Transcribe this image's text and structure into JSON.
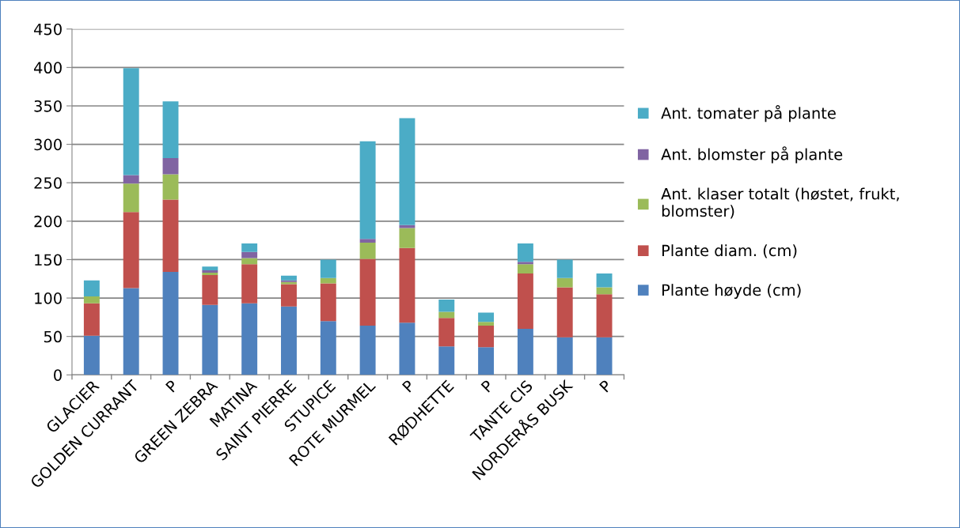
{
  "chart_data": {
    "type": "bar",
    "stacked": true,
    "categories": [
      "GLACIER",
      "GOLDEN CURRANT",
      "P",
      "GREEN ZEBRA",
      "MATINA",
      "SAINT PIERRE",
      "STUPICE",
      "ROTE MURMEL",
      "P",
      "RØDHETTE",
      "P",
      "TANTE CIS",
      "NORDERÅS BUSK",
      "P"
    ],
    "series": [
      {
        "name": "Plante høyde (cm)",
        "color": "#4f81bd",
        "values": [
          51,
          113,
          134,
          91,
          93,
          89,
          70,
          64,
          68,
          37,
          36,
          60,
          49,
          49
        ]
      },
      {
        "name": "Plante diam. (cm)",
        "color": "#c0504d",
        "values": [
          42,
          99,
          94,
          39,
          51,
          29,
          49,
          87,
          97,
          37,
          28,
          72,
          65,
          56
        ]
      },
      {
        "name": "Ant. klaser totalt (høstet, frukt,\nblomster)",
        "color": "#9bbb59",
        "values": [
          9,
          37,
          33,
          3,
          8,
          3,
          7,
          21,
          26,
          8,
          5,
          12,
          12,
          9
        ]
      },
      {
        "name": "Ant. blomster på plante",
        "color": "#8064a2",
        "values": [
          0,
          11,
          21,
          3,
          8,
          2,
          0,
          5,
          4,
          0,
          0,
          3,
          0,
          0
        ]
      },
      {
        "name": "Ant. tomater på plante",
        "color": "#4bacc6",
        "values": [
          21,
          139,
          74,
          5,
          11,
          6,
          24,
          127,
          139,
          16,
          12,
          24,
          24,
          18
        ]
      }
    ],
    "ylim": [
      0,
      450
    ],
    "yticks": [
      0,
      50,
      100,
      150,
      200,
      250,
      300,
      350,
      400,
      450
    ],
    "grid": "y",
    "legend": "right"
  }
}
